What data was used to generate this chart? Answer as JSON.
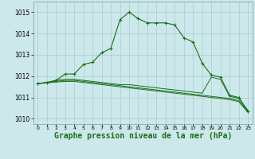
{
  "background_color": "#cce8ea",
  "grid_color": "#aacccc",
  "line_color": "#1a6e1a",
  "xlabel": "Graphe pression niveau de la mer (hPa)",
  "xlabel_fontsize": 7,
  "ylim": [
    1009.75,
    1015.5
  ],
  "xlim": [
    -0.5,
    23.5
  ],
  "yticks": [
    1010,
    1011,
    1012,
    1013,
    1014,
    1015
  ],
  "xticks": [
    0,
    1,
    2,
    3,
    4,
    5,
    6,
    7,
    8,
    9,
    10,
    11,
    12,
    13,
    14,
    15,
    16,
    17,
    18,
    19,
    20,
    21,
    22,
    23
  ],
  "series1": [
    1011.65,
    1011.7,
    1011.8,
    1012.1,
    1012.1,
    1012.55,
    1012.65,
    1013.1,
    1013.3,
    1014.65,
    1015.0,
    1014.7,
    1014.5,
    1014.5,
    1014.5,
    1014.4,
    1013.8,
    1013.6,
    1012.6,
    1012.05,
    1011.95,
    1011.1,
    1011.0,
    1010.35
  ],
  "series2": [
    1011.65,
    1011.7,
    1011.8,
    1011.85,
    1011.85,
    1011.8,
    1011.75,
    1011.7,
    1011.65,
    1011.6,
    1011.6,
    1011.55,
    1011.5,
    1011.45,
    1011.4,
    1011.35,
    1011.3,
    1011.25,
    1011.2,
    1011.95,
    1011.85,
    1011.05,
    1010.95,
    1010.4
  ],
  "series3": [
    1011.65,
    1011.7,
    1011.75,
    1011.8,
    1011.8,
    1011.75,
    1011.7,
    1011.65,
    1011.6,
    1011.55,
    1011.5,
    1011.45,
    1011.4,
    1011.35,
    1011.3,
    1011.25,
    1011.2,
    1011.15,
    1011.1,
    1011.05,
    1011.0,
    1010.95,
    1010.85,
    1010.35
  ],
  "series4": [
    1011.65,
    1011.68,
    1011.72,
    1011.75,
    1011.75,
    1011.7,
    1011.65,
    1011.6,
    1011.55,
    1011.5,
    1011.45,
    1011.4,
    1011.35,
    1011.3,
    1011.25,
    1011.2,
    1011.15,
    1011.1,
    1011.05,
    1011.0,
    1010.95,
    1010.9,
    1010.8,
    1010.3
  ]
}
